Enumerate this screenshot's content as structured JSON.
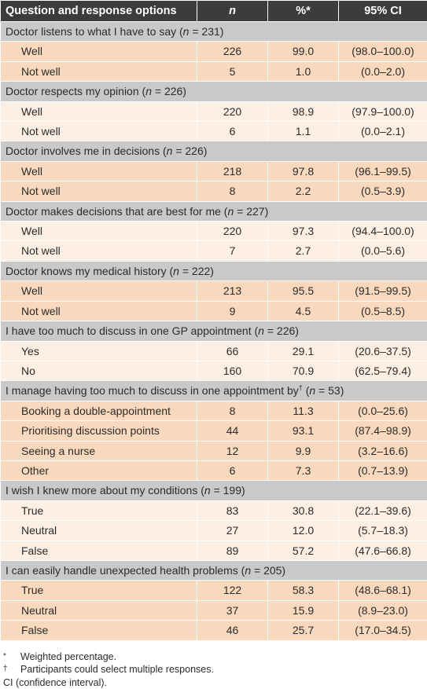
{
  "header": {
    "question": "Question and response options",
    "n": "n",
    "pct": "%*",
    "ci": "95% CI"
  },
  "sections": [
    {
      "pre": "Doctor listens to what I have to say (",
      "nvar": "n",
      "post": " = 231)",
      "rows": [
        [
          "Well",
          "226",
          "99.0",
          "(98.0–100.0)"
        ],
        [
          "Not well",
          "5",
          "1.0",
          "(0.0–2.0)"
        ]
      ]
    },
    {
      "pre": "Doctor respects my opinion (",
      "nvar": "n",
      "post": " = 226)",
      "rows": [
        [
          "Well",
          "220",
          "98.9",
          "(97.9–100.0)"
        ],
        [
          "Not well",
          "6",
          "1.1",
          "(0.0–2.1)"
        ]
      ]
    },
    {
      "pre": "Doctor involves me in decisions (",
      "nvar": "n",
      "post": " = 226)",
      "rows": [
        [
          "Well",
          "218",
          "97.8",
          "(96.1–99.5)"
        ],
        [
          "Not well",
          "8",
          "2.2",
          "(0.5–3.9)"
        ]
      ]
    },
    {
      "pre": "Doctor makes decisions that are best for me (",
      "nvar": "n",
      "post": " = 227)",
      "rows": [
        [
          "Well",
          "220",
          "97.3",
          "(94.4–100.0)"
        ],
        [
          "Not well",
          "7",
          "2.7",
          "(0.0–5.6)"
        ]
      ]
    },
    {
      "pre": "Doctor knows my medical history (",
      "nvar": "n",
      "post": " = 222)",
      "rows": [
        [
          "Well",
          "213",
          "95.5",
          "(91.5–99.5)"
        ],
        [
          "Not well",
          "9",
          "4.5",
          "(0.5–8.5)"
        ]
      ]
    },
    {
      "pre": "I have too much to discuss in one GP appointment (",
      "nvar": "n",
      "post": " = 226)",
      "rows": [
        [
          "Yes",
          "66",
          "29.1",
          "(20.6–37.5)"
        ],
        [
          "No",
          "160",
          "70.9",
          "(62.5–79.4)"
        ]
      ]
    },
    {
      "pre": "I manage having too much to discuss in one appointment by",
      "sup": "†",
      "mid": " (",
      "nvar": "n",
      "post": " = 53)",
      "rows": [
        [
          "Booking a double-appointment",
          "8",
          "11.3",
          "(0.0–25.6)"
        ],
        [
          "Prioritising discussion points",
          "44",
          "93.1",
          "(87.4–98.9)"
        ],
        [
          "Seeing a nurse",
          "12",
          "9.9",
          "(3.2–16.6)"
        ],
        [
          "Other",
          "6",
          "7.3",
          "(0.7–13.9)"
        ]
      ]
    },
    {
      "pre": "I wish I knew more about my conditions (",
      "nvar": "n",
      "post": " = 199)",
      "rows": [
        [
          "True",
          "83",
          "30.8",
          "(22.1–39.6)"
        ],
        [
          "Neutral",
          "27",
          "12.0",
          "(5.7–18.3)"
        ],
        [
          "False",
          "89",
          "57.2",
          "(47.6–66.8)"
        ]
      ]
    },
    {
      "pre": "I can easily handle unexpected health problems (",
      "nvar": "n",
      "post": " = 205)",
      "rows": [
        [
          "True",
          "122",
          "58.3",
          "(48.6–68.1)"
        ],
        [
          "Neutral",
          "37",
          "15.9",
          "(8.9–23.0)"
        ],
        [
          "False",
          "46",
          "25.7",
          "(17.0–34.5)"
        ]
      ]
    }
  ],
  "footnotes": [
    {
      "symbol": "*",
      "text": "Weighted percentage."
    },
    {
      "symbol": "†",
      "text": "Participants could select multiple responses."
    },
    {
      "symbol": "",
      "text": "CI (confidence interval)."
    }
  ]
}
